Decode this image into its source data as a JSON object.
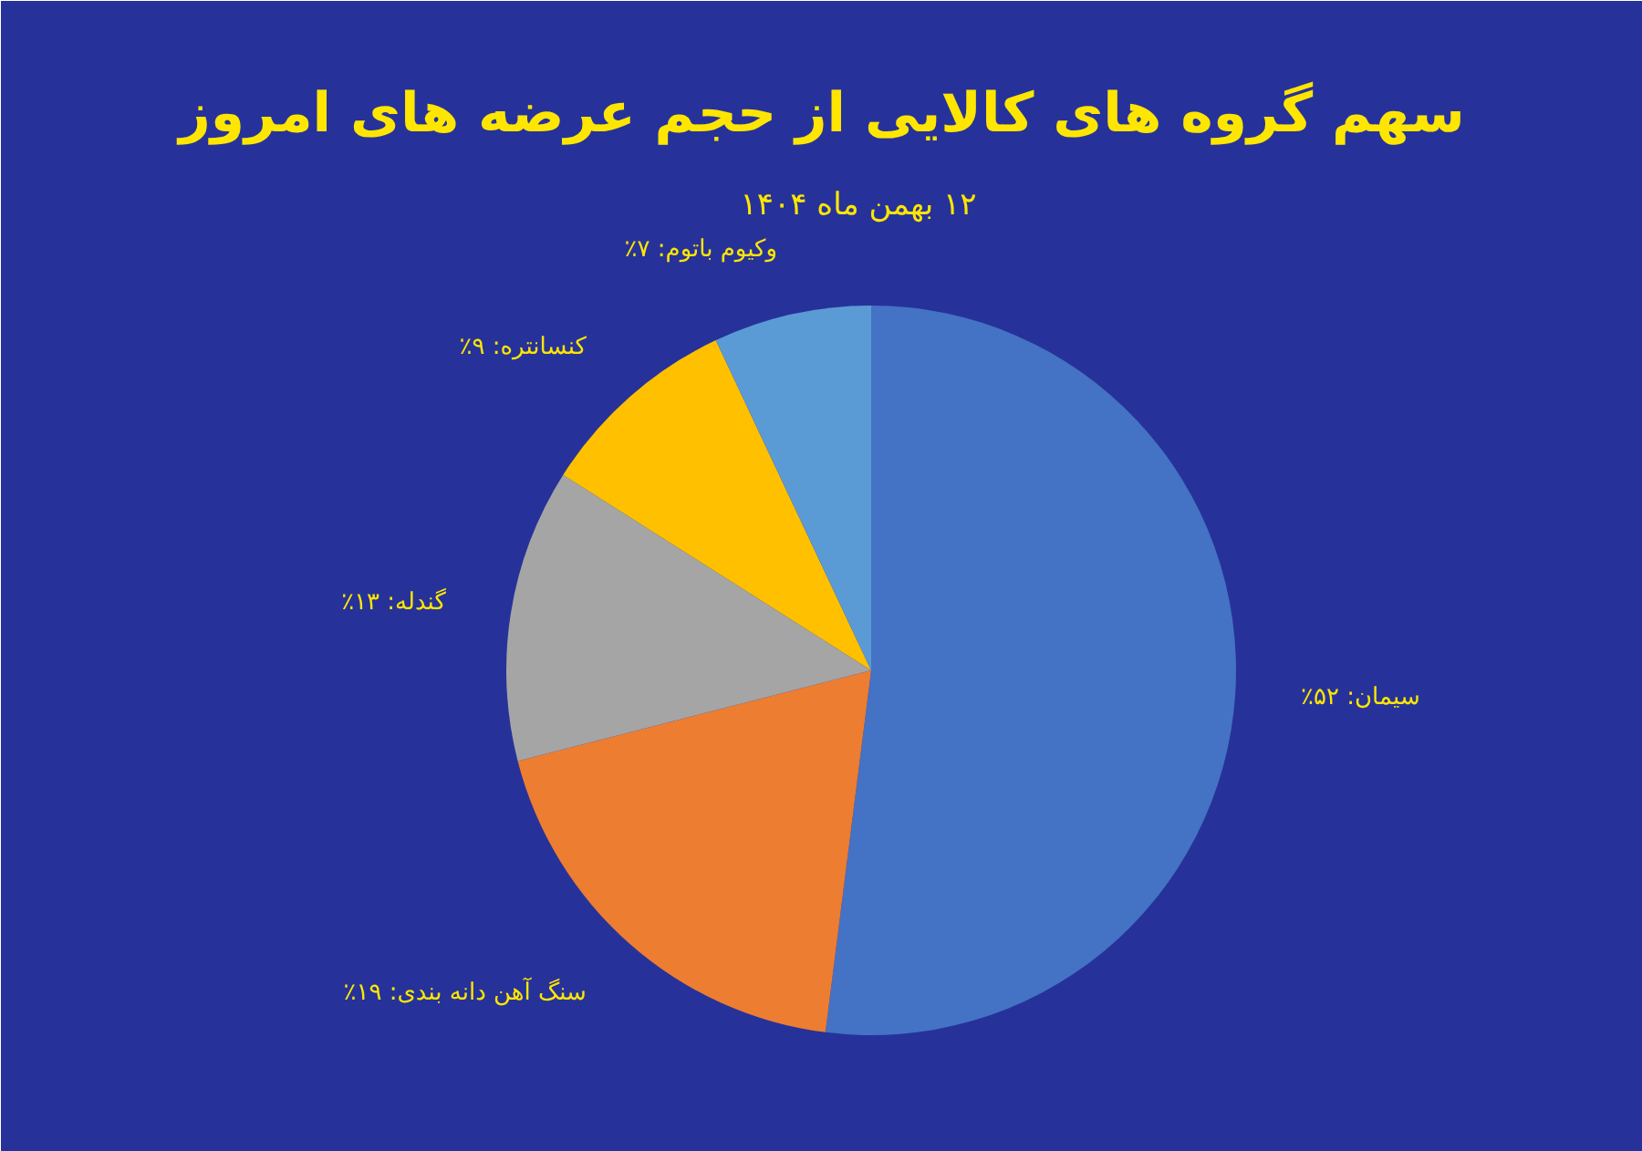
{
  "chart_data": {
    "type": "pie",
    "title": "سهم گروه های کالایی از حجم عرضه های امروز",
    "subtitle": "۱۲ بهمن ماه ۱۴۰۴",
    "categories": [
      "سیمان",
      "سنگ آهن دانه بندی",
      "گندله",
      "کنسانتره",
      "وکیوم باتوم"
    ],
    "values": [
      52,
      19,
      13,
      9,
      7
    ],
    "value_labels": [
      "۵۲٪",
      "۱۹٪",
      "۱۳٪",
      "۹٪",
      "۷٪"
    ],
    "colors": [
      "#4472c4",
      "#ed7d31",
      "#a5a5a5",
      "#ffc000",
      "#5b9bd5"
    ]
  }
}
